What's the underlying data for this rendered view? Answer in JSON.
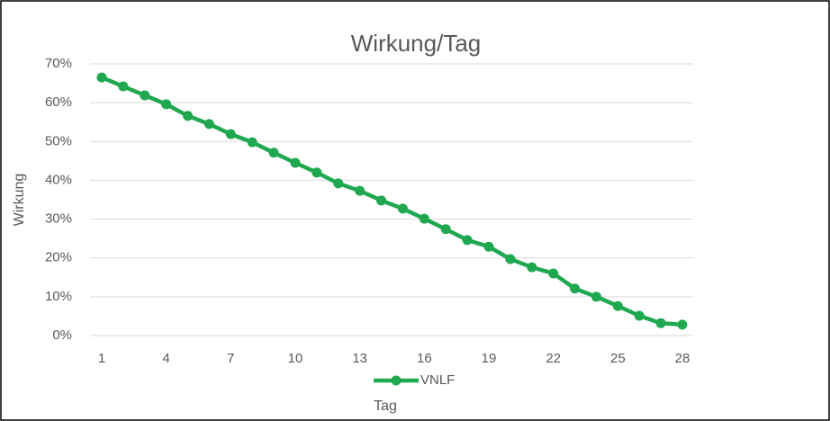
{
  "chart_data": {
    "type": "line",
    "title": "Wirkung/Tag",
    "x_label": "Tag",
    "y_label": "Wirkung",
    "x": [
      1,
      2,
      3,
      4,
      5,
      6,
      7,
      8,
      9,
      10,
      11,
      12,
      13,
      14,
      15,
      16,
      17,
      18,
      19,
      20,
      21,
      22,
      23,
      24,
      25,
      26,
      27,
      28
    ],
    "series": [
      {
        "name": "VNLF",
        "color": "#1fa84f",
        "values": [
          66.5,
          64.2,
          61.9,
          59.6,
          56.6,
          54.5,
          51.9,
          49.8,
          47.1,
          44.5,
          42.0,
          39.2,
          37.3,
          34.8,
          32.7,
          30.1,
          27.4,
          24.6,
          22.9,
          19.7,
          17.6,
          16.0,
          12.1,
          10.0,
          7.6,
          5.1,
          3.2,
          2.8
        ]
      }
    ],
    "xlim": [
      1,
      28
    ],
    "xticks": [
      1,
      4,
      7,
      10,
      13,
      16,
      19,
      22,
      25,
      28
    ],
    "ylim": [
      0,
      70
    ],
    "yticks": [
      {
        "value": 0,
        "label": "0%"
      },
      {
        "value": 10,
        "label": "10%"
      },
      {
        "value": 20,
        "label": "20%"
      },
      {
        "value": 30,
        "label": "30%"
      },
      {
        "value": 40,
        "label": "40%"
      },
      {
        "value": 50,
        "label": "50%"
      },
      {
        "value": 60,
        "label": "60%"
      },
      {
        "value": 70,
        "label": "70%"
      }
    ],
    "grid": true,
    "legend": "bottom"
  }
}
